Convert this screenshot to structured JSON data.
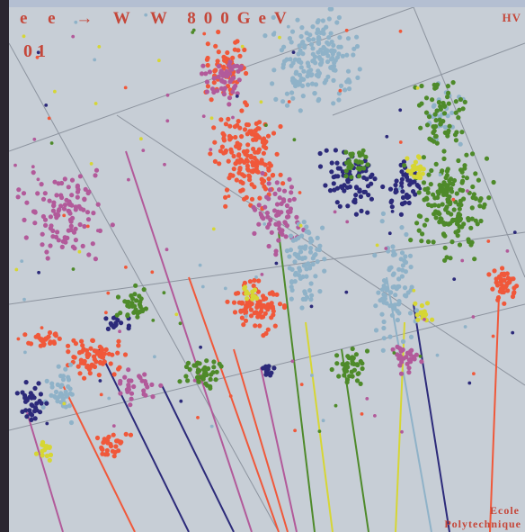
{
  "image": {
    "title_text": "e e → W W 800GeV",
    "event_number": "01",
    "corner_text": "HV",
    "institution_line1": "Ecole",
    "institution_line2": "Polytechnique"
  },
  "colors": {
    "background": "#c7ced6",
    "label": "#c5473a",
    "orange_red": "#f0583a",
    "magenta": "#b25a9a",
    "light_blue": "#8fb2c8",
    "navy": "#2c2a7a",
    "green": "#4e8a2a",
    "yellow": "#d6d634",
    "gray_line": "#8c939e"
  }
}
